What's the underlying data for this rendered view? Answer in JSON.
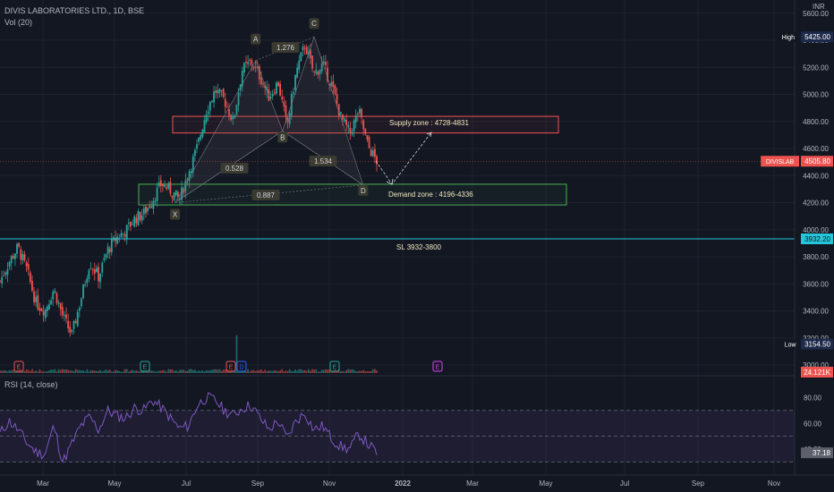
{
  "header": {
    "symbol_line": "DIVIS LABORATORIES LTD., 1D, BSE",
    "volume_label": "Vol (20)",
    "rsi_label": "RSI (14, close)",
    "currency": "INR"
  },
  "colors": {
    "background": "#131722",
    "up": "#26a69a",
    "down": "#ef5350",
    "supply": "#ef5350",
    "demand": "#4caf50",
    "sl_line": "#26c6da",
    "rsi_line": "#7e57c2",
    "pattern_fill": "#5d606b"
  },
  "price_axis": {
    "ticks": [
      "5600.00",
      "5400.00",
      "5200.00",
      "5000.00",
      "4800.00",
      "4600.00",
      "4400.00",
      "4200.00",
      "4000.00",
      "3800.00",
      "3600.00",
      "3400.00",
      "3200.00",
      "3000.00"
    ],
    "high_label": "High",
    "high_value": "5425.00",
    "low_label": "Low",
    "low_value": "3154.50",
    "last_symbol": "DIVISLAB",
    "last_value": "4505.80",
    "sl_value": "3932.20",
    "volume_value": "24.121K"
  },
  "rsi_axis": {
    "ticks": [
      "80.00",
      "60.00",
      "40.00"
    ],
    "current": "37.18"
  },
  "time_axis": [
    "Mar",
    "May",
    "Jul",
    "Sep",
    "Nov",
    "2022",
    "Mar",
    "May",
    "Jul",
    "Sep",
    "Nov"
  ],
  "annotations": {
    "supply_label": "Supply zone : 4728-4831",
    "demand_label": "Demand zone : 4196-4336",
    "sl_label": "SL 3932-3800",
    "ratios": [
      "1.276",
      "0.528",
      "1.534",
      "0.887"
    ],
    "points": [
      "X",
      "A",
      "B",
      "C",
      "D"
    ],
    "event_e": "E",
    "event_d": "D"
  },
  "chart_data": {
    "type": "candlestick",
    "title": "DIVIS LABORATORIES LTD., 1D, BSE",
    "y_range": [
      2950,
      5650
    ],
    "date_range": [
      "2021-02-01",
      "2021-12-01"
    ],
    "high": 5425.0,
    "low": 3154.5,
    "last": 4505.8,
    "supply_zone": [
      4728,
      4831
    ],
    "demand_zone": [
      4196,
      4336
    ],
    "stop_loss": [
      3800,
      3932.2
    ],
    "harmonic_points": [
      {
        "name": "X",
        "date": "2021-06-22",
        "value": 4200
      },
      {
        "name": "A",
        "date": "2021-08-30",
        "value": 5250
      },
      {
        "name": "B",
        "date": "2021-09-22",
        "value": 4730
      },
      {
        "name": "C",
        "date": "2021-10-19",
        "value": 5425
      },
      {
        "name": "D",
        "date": "2021-11-30",
        "value": 4330
      }
    ],
    "series": [
      {
        "name": "close",
        "values": [
          3620,
          3760,
          3870,
          3700,
          3460,
          3400,
          3560,
          3360,
          3220,
          3480,
          3760,
          3650,
          3850,
          3940,
          3990,
          4080,
          4120,
          4220,
          4340,
          4290,
          4220,
          4420,
          4610,
          4880,
          5030,
          4960,
          4800,
          5180,
          5240,
          5130,
          4980,
          5090,
          4760,
          5160,
          5370,
          5150,
          5220,
          5060,
          4830,
          4710,
          4880,
          4620,
          4505.8
        ]
      },
      {
        "name": "RSI (14, close)",
        "values": [
          52,
          62,
          55,
          45,
          38,
          36,
          58,
          30,
          44,
          58,
          65,
          55,
          70,
          66,
          64,
          72,
          70,
          78,
          72,
          64,
          56,
          58,
          74,
          80,
          78,
          70,
          66,
          72,
          74,
          64,
          55,
          62,
          48,
          62,
          68,
          55,
          58,
          48,
          42,
          40,
          52,
          44,
          37.18
        ]
      }
    ],
    "volume_last": "24.121K",
    "rsi_levels": [
      70,
      50,
      30
    ],
    "rsi_current": 37.18
  }
}
